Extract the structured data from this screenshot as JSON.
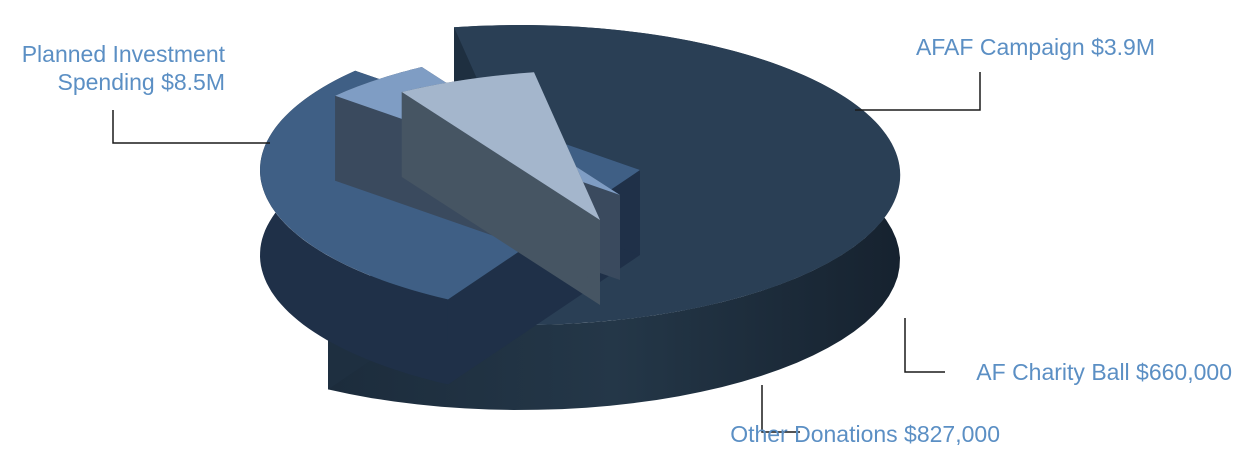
{
  "chart_data": {
    "type": "pie",
    "style": "3d-exploded",
    "title": "",
    "unit": "USD",
    "slices": [
      {
        "label_lines": [
          "Planned Investment",
          "Spending $8.5M"
        ],
        "value": 8500000,
        "color": "#2a3f55",
        "side_color": "#1e2f40"
      },
      {
        "label_lines": [
          "AFAF Campaign $3.9M"
        ],
        "value": 3900000,
        "color": "#3f5f85",
        "side_color": "#1f3048"
      },
      {
        "label_lines": [
          "AF Charity Ball $660,000"
        ],
        "value": 660000,
        "color": "#7f9dc4",
        "side_color": "#3a4a5e"
      },
      {
        "label_lines": [
          "Other Donations $827,000"
        ],
        "value": 827000,
        "color": "#a4b6cc",
        "side_color": "#465563"
      }
    ]
  }
}
